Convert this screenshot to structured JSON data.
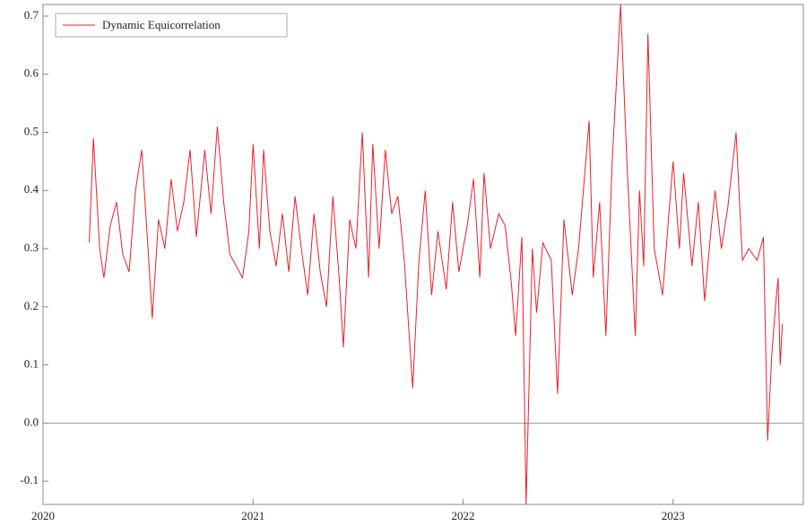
{
  "chart_data": {
    "type": "line",
    "series": [
      {
        "name": "Dynamic Equicorrelation",
        "color": "#e8202a",
        "x": [
          2020.22,
          2020.24,
          2020.27,
          2020.29,
          2020.32,
          2020.35,
          2020.38,
          2020.41,
          2020.44,
          2020.47,
          2020.5,
          2020.52,
          2020.55,
          2020.58,
          2020.61,
          2020.64,
          2020.67,
          2020.7,
          2020.73,
          2020.77,
          2020.8,
          2020.83,
          2020.86,
          2020.89,
          2020.92,
          2020.95,
          2020.98,
          2021.0,
          2021.03,
          2021.05,
          2021.08,
          2021.11,
          2021.14,
          2021.17,
          2021.2,
          2021.23,
          2021.26,
          2021.29,
          2021.32,
          2021.35,
          2021.38,
          2021.41,
          2021.43,
          2021.46,
          2021.49,
          2021.52,
          2021.55,
          2021.57,
          2021.6,
          2021.63,
          2021.66,
          2021.69,
          2021.72,
          2021.76,
          2021.79,
          2021.82,
          2021.85,
          2021.88,
          2021.92,
          2021.95,
          2021.98,
          2022.02,
          2022.05,
          2022.08,
          2022.1,
          2022.13,
          2022.17,
          2022.2,
          2022.23,
          2022.25,
          2022.28,
          2022.3,
          2022.33,
          2022.35,
          2022.38,
          2022.42,
          2022.45,
          2022.48,
          2022.52,
          2022.55,
          2022.6,
          2022.62,
          2022.65,
          2022.68,
          2022.71,
          2022.75,
          2022.78,
          2022.82,
          2022.84,
          2022.86,
          2022.88,
          2022.91,
          2022.95,
          2022.98,
          2023.0,
          2023.03,
          2023.05,
          2023.09,
          2023.12,
          2023.15,
          2023.18,
          2023.2,
          2023.23,
          2023.26,
          2023.3,
          2023.33,
          2023.36,
          2023.4,
          2023.43,
          2023.45,
          2023.47,
          2023.49,
          2023.5,
          2023.51,
          2023.52
        ],
        "values": [
          0.31,
          0.49,
          0.3,
          0.25,
          0.34,
          0.38,
          0.29,
          0.26,
          0.4,
          0.47,
          0.3,
          0.18,
          0.35,
          0.3,
          0.42,
          0.33,
          0.38,
          0.47,
          0.32,
          0.47,
          0.36,
          0.51,
          0.38,
          0.29,
          0.27,
          0.25,
          0.33,
          0.48,
          0.3,
          0.47,
          0.33,
          0.27,
          0.36,
          0.26,
          0.39,
          0.3,
          0.22,
          0.36,
          0.26,
          0.2,
          0.39,
          0.25,
          0.13,
          0.35,
          0.3,
          0.5,
          0.25,
          0.48,
          0.3,
          0.47,
          0.36,
          0.39,
          0.28,
          0.06,
          0.28,
          0.4,
          0.22,
          0.33,
          0.23,
          0.38,
          0.26,
          0.34,
          0.42,
          0.25,
          0.43,
          0.3,
          0.36,
          0.34,
          0.24,
          0.15,
          0.32,
          -0.14,
          0.3,
          0.19,
          0.31,
          0.28,
          0.05,
          0.35,
          0.22,
          0.3,
          0.52,
          0.25,
          0.38,
          0.15,
          0.45,
          0.72,
          0.45,
          0.15,
          0.4,
          0.27,
          0.67,
          0.3,
          0.22,
          0.36,
          0.45,
          0.3,
          0.43,
          0.27,
          0.38,
          0.21,
          0.33,
          0.4,
          0.3,
          0.37,
          0.5,
          0.28,
          0.3,
          0.28,
          0.32,
          -0.03,
          0.12,
          0.21,
          0.25,
          0.1,
          0.17
        ]
      }
    ],
    "xlim": [
      2020.0,
      2023.62
    ],
    "xticks": [
      2020,
      2021,
      2022,
      2023
    ],
    "ylim": [
      -0.14,
      0.72
    ],
    "yticks": [
      -0.1,
      {
        "value": 0,
        "label": "0.0"
      },
      0.1,
      0.2,
      0.3,
      0.4,
      0.5,
      0.6,
      0.7
    ],
    "hline": 0,
    "legend": "top-left"
  }
}
